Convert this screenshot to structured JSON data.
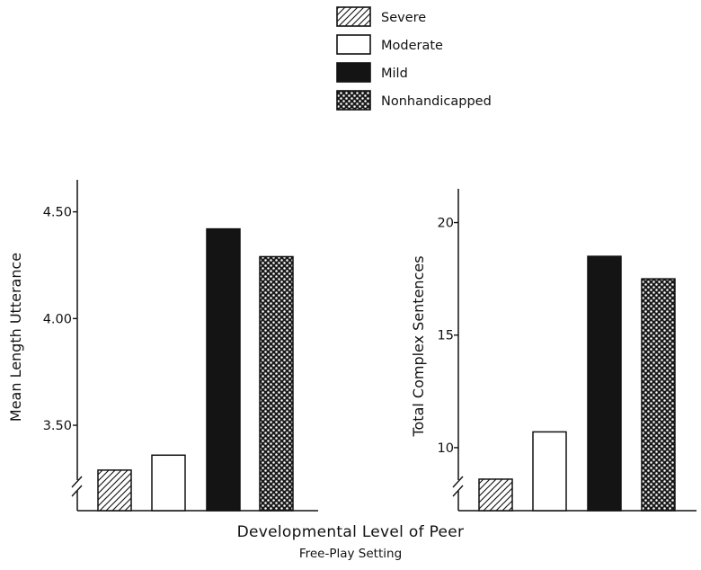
{
  "legend": {
    "placement": "top-center",
    "entries": [
      {
        "label": "Severe",
        "pattern": "hatch"
      },
      {
        "label": "Moderate",
        "pattern": "open"
      },
      {
        "label": "Mild",
        "pattern": "solid"
      },
      {
        "label": "Nonhandicapped",
        "pattern": "checker"
      }
    ]
  },
  "xlabel": "Developmental Level of Peer",
  "subtitle": "Free-Play Setting",
  "colors": {
    "ink": "#111111",
    "background": "#ffffff"
  },
  "chart_data": [
    {
      "type": "bar",
      "ylabel": "Mean Length Utterance",
      "categories": [
        "Severe",
        "Moderate",
        "Mild",
        "Nonhandicapped"
      ],
      "values": [
        3.29,
        3.36,
        4.42,
        4.29
      ],
      "ylim": [
        3.1,
        4.65
      ],
      "yticks": [
        3.5,
        4.0,
        4.5
      ],
      "ytick_labels": [
        "3.50",
        "4.00",
        "4.50"
      ],
      "axis_break": true,
      "grid": false
    },
    {
      "type": "bar",
      "ylabel": "Total Complex Sentences",
      "categories": [
        "Severe",
        "Moderate",
        "Mild",
        "Nonhandicapped"
      ],
      "values": [
        8.6,
        10.7,
        18.5,
        17.5
      ],
      "ylim": [
        7.2,
        21.5
      ],
      "yticks": [
        10,
        15,
        20
      ],
      "ytick_labels": [
        "10",
        "15",
        "20"
      ],
      "axis_break": true,
      "grid": false
    }
  ]
}
